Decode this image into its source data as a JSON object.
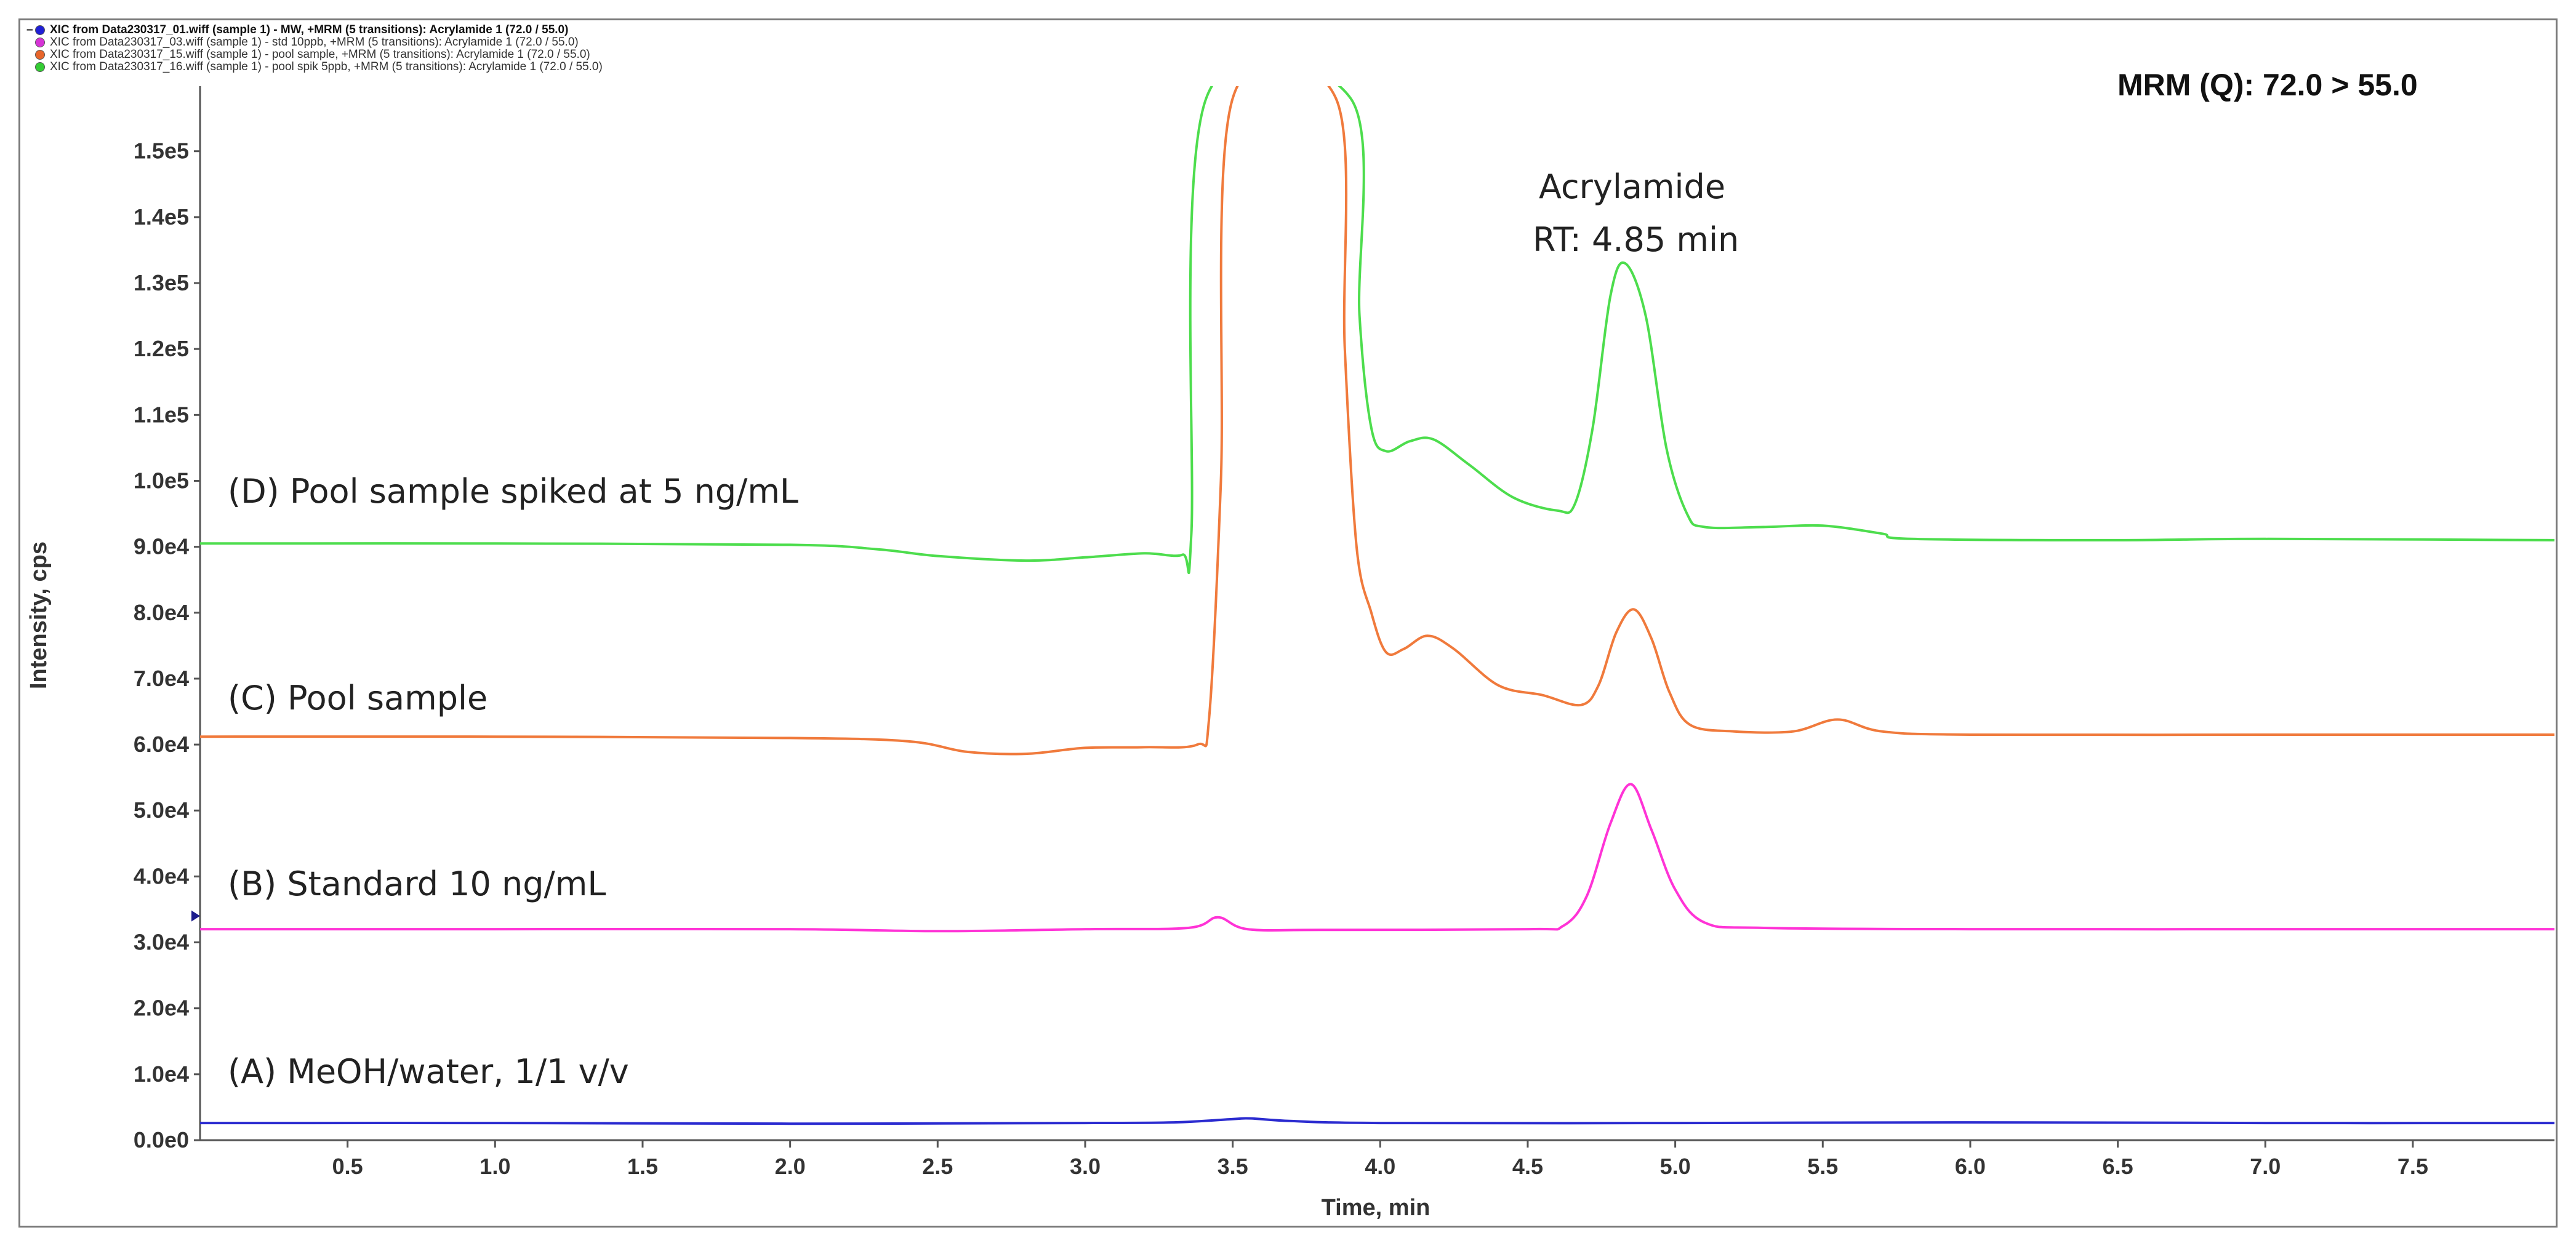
{
  "legend": [
    {
      "label": "XIC from Data230317_01.wiff (sample 1) - MW, +MRM (5 transitions): Acrylamide 1 (72.0 / 55.0)",
      "color": "#1f1fd6"
    },
    {
      "label": "XIC from Data230317_03.wiff (sample 1) - std 10ppb, +MRM (5 transitions): Acrylamide 1 (72.0 / 55.0)",
      "color": "#d633d6"
    },
    {
      "label": "XIC from Data230317_15.wiff (sample 1) - pool sample, +MRM (5 transitions): Acrylamide 1 (72.0 / 55.0)",
      "color": "#e8652a"
    },
    {
      "label": "XIC from Data230317_16.wiff (sample 1) - pool spik 5ppb, +MRM (5 transitions): Acrylamide 1 (72.0 / 55.0)",
      "color": "#33cc33"
    }
  ],
  "chart_data": {
    "type": "line",
    "title": "MRM (Q): 72.0 > 55.0",
    "xlabel": "Time, min",
    "ylabel": "Intensity, cps",
    "xlim": [
      0.0,
      7.98
    ],
    "ylim": [
      0,
      158000
    ],
    "x_ticks": [
      "0.5",
      "1.0",
      "1.5",
      "2.0",
      "2.5",
      "3.0",
      "3.5",
      "4.0",
      "4.5",
      "5.0",
      "5.5",
      "6.0",
      "6.5",
      "7.0",
      "7.5"
    ],
    "y_ticks": [
      "0.0e0",
      "1.0e4",
      "2.0e4",
      "3.0e4",
      "4.0e4",
      "5.0e4",
      "6.0e4",
      "7.0e4",
      "8.0e4",
      "9.0e4",
      "1.0e5",
      "1.1e5",
      "1.2e5",
      "1.3e5",
      "1.4e5",
      "1.5e5"
    ],
    "y_tick_values": [
      0,
      10000,
      20000,
      30000,
      40000,
      50000,
      60000,
      70000,
      80000,
      90000,
      100000,
      110000,
      120000,
      130000,
      140000,
      150000
    ],
    "x_tick_values": [
      0.5,
      1.0,
      1.5,
      2.0,
      2.5,
      3.0,
      3.5,
      4.0,
      4.5,
      5.0,
      5.5,
      6.0,
      6.5,
      7.0,
      7.5
    ],
    "annotations": {
      "peak_name": "Acrylamide",
      "peak_rt": "RT: 4.85 min",
      "trace_d": "(D) Pool sample spiked at 5 ng/mL",
      "trace_c": "(C) Pool sample",
      "trace_b": "(B) Standard 10 ng/mL",
      "trace_a": "(A) MeOH/water, 1/1 v/v"
    },
    "series": [
      {
        "color": "#2b2bd0",
        "points": [
          [
            0.0,
            2600
          ],
          [
            1.0,
            2600
          ],
          [
            2.0,
            2500
          ],
          [
            3.0,
            2600
          ],
          [
            3.3,
            2700
          ],
          [
            3.5,
            3200
          ],
          [
            3.56,
            3300
          ],
          [
            3.7,
            2900
          ],
          [
            4.0,
            2600
          ],
          [
            5.0,
            2600
          ],
          [
            6.0,
            2700
          ],
          [
            7.0,
            2600
          ],
          [
            7.98,
            2600
          ]
        ]
      },
      {
        "color": "#ff33d6",
        "points": [
          [
            0.0,
            32000
          ],
          [
            1.0,
            32000
          ],
          [
            2.0,
            32000
          ],
          [
            2.5,
            31700
          ],
          [
            3.0,
            32000
          ],
          [
            3.35,
            32200
          ],
          [
            3.45,
            33800
          ],
          [
            3.55,
            32000
          ],
          [
            3.8,
            31900
          ],
          [
            4.5,
            32000
          ],
          [
            4.62,
            32500
          ],
          [
            4.7,
            37000
          ],
          [
            4.78,
            48000
          ],
          [
            4.85,
            54000
          ],
          [
            4.92,
            47000
          ],
          [
            5.0,
            38000
          ],
          [
            5.1,
            33000
          ],
          [
            5.3,
            32200
          ],
          [
            6.0,
            32000
          ],
          [
            7.0,
            32000
          ],
          [
            7.98,
            32000
          ]
        ]
      },
      {
        "color": "#f07a3c",
        "points": [
          [
            0.0,
            61200
          ],
          [
            1.0,
            61200
          ],
          [
            2.0,
            61000
          ],
          [
            2.4,
            60500
          ],
          [
            2.6,
            58900
          ],
          [
            2.8,
            58600
          ],
          [
            3.0,
            59500
          ],
          [
            3.2,
            59600
          ],
          [
            3.38,
            60000
          ],
          [
            3.42,
            64000
          ],
          [
            3.46,
            100000
          ],
          [
            3.5,
            158000
          ],
          [
            3.85,
            158000
          ],
          [
            3.88,
            120000
          ],
          [
            3.92,
            90000
          ],
          [
            3.97,
            80000
          ],
          [
            4.02,
            74000
          ],
          [
            4.08,
            74500
          ],
          [
            4.16,
            76500
          ],
          [
            4.25,
            74500
          ],
          [
            4.4,
            69000
          ],
          [
            4.55,
            67500
          ],
          [
            4.68,
            66000
          ],
          [
            4.74,
            69000
          ],
          [
            4.8,
            77000
          ],
          [
            4.86,
            80500
          ],
          [
            4.92,
            76000
          ],
          [
            4.98,
            68000
          ],
          [
            5.05,
            63000
          ],
          [
            5.2,
            62000
          ],
          [
            5.4,
            62000
          ],
          [
            5.55,
            63800
          ],
          [
            5.7,
            62000
          ],
          [
            6.0,
            61500
          ],
          [
            7.0,
            61500
          ],
          [
            7.98,
            61500
          ]
        ]
      },
      {
        "color": "#4ddd4d",
        "points": [
          [
            0.0,
            90500
          ],
          [
            1.0,
            90500
          ],
          [
            2.0,
            90300
          ],
          [
            2.3,
            89600
          ],
          [
            2.5,
            88600
          ],
          [
            2.8,
            87900
          ],
          [
            3.0,
            88400
          ],
          [
            3.2,
            89000
          ],
          [
            3.33,
            88800
          ],
          [
            3.36,
            92000
          ],
          [
            3.41,
            158000
          ],
          [
            3.9,
            158000
          ],
          [
            3.93,
            125000
          ],
          [
            3.97,
            108000
          ],
          [
            4.02,
            104500
          ],
          [
            4.1,
            106000
          ],
          [
            4.18,
            106300
          ],
          [
            4.3,
            102500
          ],
          [
            4.45,
            97500
          ],
          [
            4.6,
            95500
          ],
          [
            4.66,
            96500
          ],
          [
            4.72,
            108000
          ],
          [
            4.78,
            128000
          ],
          [
            4.83,
            133000
          ],
          [
            4.9,
            125000
          ],
          [
            4.97,
            105000
          ],
          [
            5.04,
            95000
          ],
          [
            5.1,
            93000
          ],
          [
            5.3,
            93000
          ],
          [
            5.5,
            93200
          ],
          [
            5.7,
            92000
          ],
          [
            5.8,
            91200
          ],
          [
            6.5,
            91000
          ],
          [
            7.0,
            91200
          ],
          [
            7.98,
            91000
          ]
        ]
      }
    ]
  }
}
